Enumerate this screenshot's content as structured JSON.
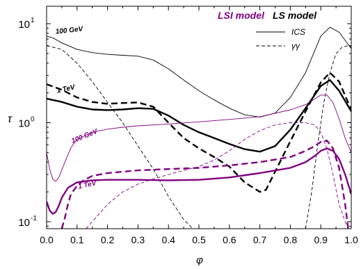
{
  "chart_data": {
    "type": "line",
    "xlabel": "φ",
    "ylabel": "τ",
    "xlim": [
      0.0,
      1.0
    ],
    "ylim": [
      0.085,
      15
    ],
    "yscale": "log",
    "x_ticks": [
      "0.0",
      "0.1",
      "0.2",
      "0.3",
      "0.4",
      "0.5",
      "0.6",
      "0.7",
      "0.8",
      "0.9",
      "1.0"
    ],
    "x_tick_values": [
      0,
      0.1,
      0.2,
      0.3,
      0.4,
      0.5,
      0.6,
      0.7,
      0.8,
      0.9,
      1.0
    ],
    "y_ticks": [
      {
        "value": 0.1,
        "base": "10",
        "exp": "-1"
      },
      {
        "value": 1,
        "base": "10",
        "exp": "0"
      },
      {
        "value": 10,
        "base": "10",
        "exp": "1"
      }
    ],
    "legend": {
      "placement": "top-right",
      "model_headers": [
        {
          "text": "LSI model",
          "color": "#800080"
        },
        {
          "text": "LS model",
          "color": "#000000"
        }
      ],
      "entries": [
        {
          "label": "ICS",
          "dash": "solid"
        },
        {
          "label": "γγ",
          "dash": "dashed"
        }
      ]
    },
    "annotations": [
      {
        "text": "100 GeV",
        "x": 0.03,
        "y": 7.9,
        "color": "#000000",
        "angle": -6
      },
      {
        "text": "1 TeV",
        "x": 0.035,
        "y": 2.0,
        "color": "#000000",
        "angle": -12
      },
      {
        "text": "100 GeV",
        "x": 0.085,
        "y": 0.62,
        "color": "#800080",
        "angle": -22
      },
      {
        "text": "1 TeV",
        "x": 0.105,
        "y": 0.215,
        "color": "#800080",
        "angle": -12
      }
    ],
    "series": [
      {
        "model": "LS",
        "energy": "100 GeV",
        "process": "ICS",
        "color": "#000000",
        "width": 0.9,
        "dash": "solid",
        "x": [
          0.0,
          0.02,
          0.05,
          0.1,
          0.15,
          0.2,
          0.25,
          0.3,
          0.35,
          0.4,
          0.45,
          0.5,
          0.55,
          0.6,
          0.65,
          0.7,
          0.75,
          0.8,
          0.85,
          0.9,
          0.93,
          0.96,
          1.0
        ],
        "y": [
          7.5,
          7.2,
          6.4,
          5.5,
          5.1,
          4.9,
          4.8,
          4.7,
          4.3,
          3.5,
          2.7,
          2.1,
          1.7,
          1.4,
          1.2,
          1.14,
          1.25,
          1.8,
          3.2,
          7.5,
          9.2,
          8.2,
          5.6
        ]
      },
      {
        "model": "LS",
        "energy": "100 GeV",
        "process": "γγ",
        "color": "#000000",
        "width": 0.9,
        "dash": "dashed",
        "x": [
          0.0,
          0.05,
          0.1,
          0.15,
          0.2,
          0.25,
          0.3,
          0.35,
          0.4,
          0.45,
          0.48
        ],
        "y": [
          6.0,
          5.5,
          4.0,
          2.6,
          1.6,
          1.0,
          0.58,
          0.34,
          0.18,
          0.105,
          0.085
        ]
      },
      {
        "model": "LS",
        "energy": "100 GeV",
        "process": "γγ",
        "color": "#000000",
        "width": 0.9,
        "dash": "dashed",
        "x": [
          0.85,
          0.87,
          0.89,
          0.91,
          0.93,
          0.95,
          0.97,
          0.99,
          1.0
        ],
        "y": [
          0.085,
          0.2,
          0.6,
          1.6,
          3.2,
          5.0,
          5.8,
          6.0,
          5.8
        ]
      },
      {
        "model": "LS",
        "energy": "1 TeV",
        "process": "ICS",
        "color": "#000000",
        "width": 2.4,
        "dash": "solid",
        "x": [
          0.0,
          0.05,
          0.1,
          0.15,
          0.2,
          0.25,
          0.3,
          0.35,
          0.4,
          0.45,
          0.5,
          0.55,
          0.6,
          0.65,
          0.7,
          0.75,
          0.8,
          0.85,
          0.9,
          0.93,
          0.96,
          1.0
        ],
        "y": [
          1.75,
          1.62,
          1.45,
          1.36,
          1.34,
          1.36,
          1.4,
          1.38,
          1.18,
          0.95,
          0.8,
          0.7,
          0.61,
          0.54,
          0.51,
          0.58,
          0.85,
          1.4,
          2.35,
          2.7,
          2.1,
          1.3
        ]
      },
      {
        "model": "LS",
        "energy": "1 TeV",
        "process": "γγ",
        "color": "#000000",
        "width": 2.4,
        "dash": "dashed",
        "x": [
          0.0,
          0.05,
          0.1,
          0.15,
          0.2,
          0.25,
          0.3,
          0.35,
          0.4,
          0.45,
          0.5,
          0.55,
          0.6,
          0.65,
          0.7,
          0.72,
          0.75,
          0.8,
          0.85,
          0.9,
          0.93,
          0.96,
          1.0
        ],
        "y": [
          2.45,
          2.15,
          1.8,
          1.62,
          1.55,
          1.58,
          1.6,
          1.45,
          1.0,
          0.7,
          0.55,
          0.45,
          0.36,
          0.25,
          0.2,
          0.21,
          0.32,
          0.65,
          1.3,
          2.55,
          3.2,
          2.6,
          1.35
        ]
      },
      {
        "model": "LSI",
        "energy": "100 GeV",
        "process": "ICS",
        "color": "#800080",
        "width": 0.9,
        "dash": "solid",
        "x": [
          0.0,
          0.01,
          0.02,
          0.03,
          0.04,
          0.06,
          0.08,
          0.1,
          0.15,
          0.2,
          0.25,
          0.3,
          0.4,
          0.5,
          0.6,
          0.7,
          0.8,
          0.85,
          0.9,
          0.92,
          0.94,
          0.96,
          0.98,
          1.0
        ],
        "y": [
          0.5,
          0.34,
          0.27,
          0.255,
          0.28,
          0.4,
          0.56,
          0.68,
          0.8,
          0.86,
          0.9,
          0.93,
          0.97,
          1.02,
          1.08,
          1.15,
          1.35,
          1.52,
          1.9,
          1.9,
          1.6,
          1.1,
          0.7,
          0.5
        ]
      },
      {
        "model": "LSI",
        "energy": "100 GeV",
        "process": "γγ",
        "color": "#800080",
        "width": 0.9,
        "dash": "dashed",
        "x": [
          0.13,
          0.15,
          0.2,
          0.25,
          0.3,
          0.35,
          0.4,
          0.45,
          0.5,
          0.55,
          0.6,
          0.65,
          0.7,
          0.75,
          0.8,
          0.85,
          0.88,
          0.9,
          0.92,
          0.94,
          0.96,
          0.98,
          0.99
        ],
        "y": [
          0.085,
          0.1,
          0.15,
          0.2,
          0.24,
          0.27,
          0.3,
          0.33,
          0.36,
          0.42,
          0.52,
          0.68,
          0.83,
          0.95,
          1.0,
          1.0,
          0.95,
          0.8,
          0.55,
          0.3,
          0.15,
          0.1,
          0.085
        ]
      },
      {
        "model": "LSI",
        "energy": "1 TeV",
        "process": "ICS",
        "color": "#800080",
        "width": 2.4,
        "dash": "solid",
        "x": [
          0.0,
          0.01,
          0.02,
          0.03,
          0.04,
          0.05,
          0.07,
          0.1,
          0.15,
          0.2,
          0.3,
          0.4,
          0.5,
          0.6,
          0.7,
          0.8,
          0.85,
          0.88,
          0.9,
          0.92,
          0.94,
          0.96,
          0.98,
          1.0
        ],
        "y": [
          0.16,
          0.13,
          0.12,
          0.125,
          0.145,
          0.175,
          0.22,
          0.25,
          0.262,
          0.265,
          0.265,
          0.262,
          0.265,
          0.28,
          0.31,
          0.35,
          0.4,
          0.46,
          0.52,
          0.55,
          0.52,
          0.43,
          0.3,
          0.19
        ]
      },
      {
        "model": "LSI",
        "energy": "1 TeV",
        "process": "γγ",
        "color": "#800080",
        "width": 2.4,
        "dash": "dashed",
        "x": [
          0.05,
          0.06,
          0.07,
          0.08,
          0.1,
          0.12,
          0.15,
          0.2,
          0.3,
          0.4,
          0.5,
          0.6,
          0.7,
          0.8,
          0.85,
          0.88,
          0.9,
          0.92,
          0.94,
          0.96,
          0.98,
          0.99
        ],
        "y": [
          0.085,
          0.11,
          0.15,
          0.19,
          0.23,
          0.26,
          0.29,
          0.31,
          0.33,
          0.34,
          0.35,
          0.37,
          0.4,
          0.45,
          0.52,
          0.58,
          0.64,
          0.66,
          0.55,
          0.35,
          0.15,
          0.085
        ]
      }
    ]
  }
}
